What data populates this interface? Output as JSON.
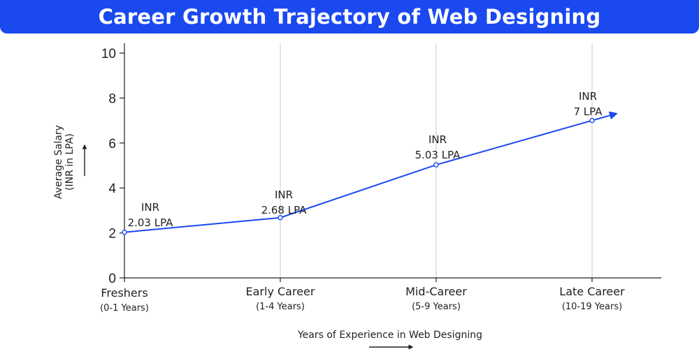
{
  "title": "Career Growth Trajectory of Web Designing",
  "colors": {
    "title_bg": "#1a49f0",
    "line": "#1a49f0",
    "grid": "#c8c8c8",
    "axis": "#222222"
  },
  "chart_data": {
    "type": "line",
    "title": "Career Growth Trajectory of Web Designing",
    "xlabel": "Years of Experience in Web Designing",
    "ylabel_lines": [
      "Average Salary",
      "(INR in LPA)"
    ],
    "ylim": [
      0,
      10
    ],
    "yticks": [
      0,
      2,
      4,
      6,
      8,
      10
    ],
    "grid": "vertical",
    "categories": [
      {
        "label": "Freshers",
        "sub": "(0-1 Years)"
      },
      {
        "label": "Early Career",
        "sub": "(1-4 Years)"
      },
      {
        "label": "Mid-Career",
        "sub": "(5-9 Years)"
      },
      {
        "label": "Late Career",
        "sub": "(10-19 Years)"
      }
    ],
    "values": [
      2.03,
      2.68,
      5.03,
      7.0
    ],
    "data_labels": [
      [
        "INR",
        "2.03 LPA"
      ],
      [
        "INR",
        "2.68 LPA"
      ],
      [
        "INR",
        "5.03 LPA"
      ],
      [
        "INR",
        "7 LPA"
      ]
    ]
  }
}
